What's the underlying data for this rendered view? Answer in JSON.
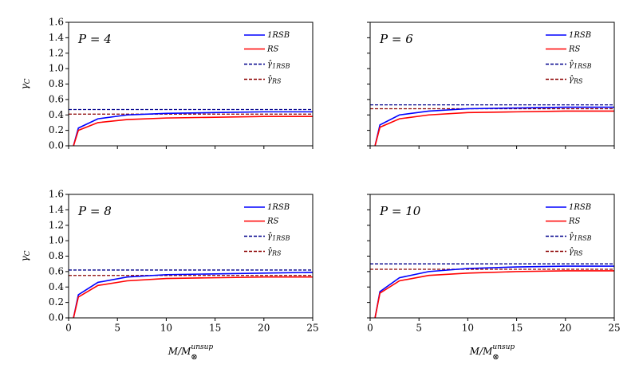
{
  "chart_data": [
    {
      "type": "line",
      "title": {
        "text": "P = 4"
      },
      "ylabel": {
        "text": "γ",
        "sub": "C"
      },
      "show_xtick_labels": false,
      "show_ytick_labels": true,
      "x": [
        0.5,
        1,
        3,
        6,
        10,
        15,
        20,
        25
      ],
      "series": [
        {
          "name": "1RSB",
          "color": "#0000ff",
          "values": [
            0,
            0.23,
            0.35,
            0.4,
            0.42,
            0.43,
            0.44,
            0.44
          ]
        },
        {
          "name": "RS",
          "color": "#ff0000",
          "values": [
            0,
            0.2,
            0.3,
            0.34,
            0.36,
            0.37,
            0.38,
            0.38
          ]
        }
      ],
      "hlines": [
        {
          "name": "γ̂",
          "subscript": "1RSB",
          "color": "#00008b",
          "value": 0.47
        },
        {
          "name": "γ̂",
          "subscript": "RS",
          "color": "#8b0000",
          "value": 0.41
        }
      ],
      "xlim": [
        0,
        25
      ],
      "xticks": [
        0,
        5,
        10,
        15,
        20,
        25
      ],
      "ylim": [
        0,
        1.6
      ],
      "yticks": [
        {
          "value": 0,
          "label": "0.0"
        },
        0.2,
        0.4,
        0.6,
        0.8,
        {
          "value": 1,
          "label": "1.0"
        },
        1.2,
        1.4,
        1.6
      ],
      "legend": "upper right"
    },
    {
      "type": "line",
      "title": {
        "text": "P = 6"
      },
      "show_xtick_labels": false,
      "show_ytick_labels": false,
      "x": [
        0.5,
        1,
        3,
        6,
        10,
        15,
        20,
        25
      ],
      "series": [
        {
          "name": "1RSB",
          "color": "#0000ff",
          "values": [
            0,
            0.27,
            0.4,
            0.45,
            0.48,
            0.49,
            0.5,
            0.5
          ]
        },
        {
          "name": "RS",
          "color": "#ff0000",
          "values": [
            0,
            0.24,
            0.35,
            0.4,
            0.43,
            0.44,
            0.45,
            0.45
          ]
        }
      ],
      "hlines": [
        {
          "name": "γ̂",
          "subscript": "1RSB",
          "color": "#00008b",
          "value": 0.53
        },
        {
          "name": "γ̂",
          "subscript": "RS",
          "color": "#8b0000",
          "value": 0.48
        }
      ],
      "xlim": [
        0,
        25
      ],
      "xticks": [
        0,
        5,
        10,
        15,
        20,
        25
      ],
      "ylim": [
        0,
        1.6
      ],
      "yticks": [
        {
          "value": 0,
          "label": "0.0"
        },
        0.2,
        0.4,
        0.6,
        0.8,
        {
          "value": 1,
          "label": "1.0"
        },
        1.2,
        1.4,
        1.6
      ],
      "legend": "upper right"
    },
    {
      "type": "line",
      "title": {
        "text": "P = 8"
      },
      "ylabel": {
        "text": "γ",
        "sub": "C"
      },
      "xlabel": {
        "text": "M/M",
        "sub": "⊗",
        "sup": "unsup"
      },
      "show_xtick_labels": true,
      "show_ytick_labels": true,
      "x": [
        0.5,
        1,
        3,
        6,
        10,
        15,
        20,
        25
      ],
      "series": [
        {
          "name": "1RSB",
          "color": "#0000ff",
          "values": [
            0,
            0.3,
            0.46,
            0.53,
            0.56,
            0.57,
            0.58,
            0.59
          ]
        },
        {
          "name": "RS",
          "color": "#ff0000",
          "values": [
            0,
            0.27,
            0.42,
            0.48,
            0.51,
            0.52,
            0.53,
            0.53
          ]
        }
      ],
      "hlines": [
        {
          "name": "γ̂",
          "subscript": "1RSB",
          "color": "#00008b",
          "value": 0.62
        },
        {
          "name": "γ̂",
          "subscript": "RS",
          "color": "#8b0000",
          "value": 0.55
        }
      ],
      "xlim": [
        0,
        25
      ],
      "xticks": [
        0,
        5,
        10,
        15,
        20,
        25
      ],
      "ylim": [
        0,
        1.6
      ],
      "yticks": [
        {
          "value": 0,
          "label": "0.0"
        },
        0.2,
        0.4,
        0.6,
        0.8,
        {
          "value": 1,
          "label": "1.0"
        },
        1.2,
        1.4,
        1.6
      ],
      "legend": "upper right"
    },
    {
      "type": "line",
      "title": {
        "text": "P = 10"
      },
      "xlabel": {
        "text": "M/M",
        "sub": "⊗",
        "sup": "unsup"
      },
      "show_xtick_labels": true,
      "show_ytick_labels": false,
      "x": [
        0.5,
        1,
        3,
        6,
        10,
        15,
        20,
        25
      ],
      "series": [
        {
          "name": "1RSB",
          "color": "#0000ff",
          "values": [
            0,
            0.34,
            0.52,
            0.6,
            0.64,
            0.66,
            0.67,
            0.67
          ]
        },
        {
          "name": "RS",
          "color": "#ff0000",
          "values": [
            0,
            0.32,
            0.48,
            0.55,
            0.58,
            0.6,
            0.61,
            0.61
          ]
        }
      ],
      "hlines": [
        {
          "name": "γ̂",
          "subscript": "1RSB",
          "color": "#00008b",
          "value": 0.7
        },
        {
          "name": "γ̂",
          "subscript": "RS",
          "color": "#8b0000",
          "value": 0.63
        }
      ],
      "xlim": [
        0,
        25
      ],
      "xticks": [
        0,
        5,
        10,
        15,
        20,
        25
      ],
      "ylim": [
        0,
        1.6
      ],
      "yticks": [
        {
          "value": 0,
          "label": "0.0"
        },
        0.2,
        0.4,
        0.6,
        0.8,
        {
          "value": 1,
          "label": "1.0"
        },
        1.2,
        1.4,
        1.6
      ],
      "legend": "upper right"
    }
  ]
}
